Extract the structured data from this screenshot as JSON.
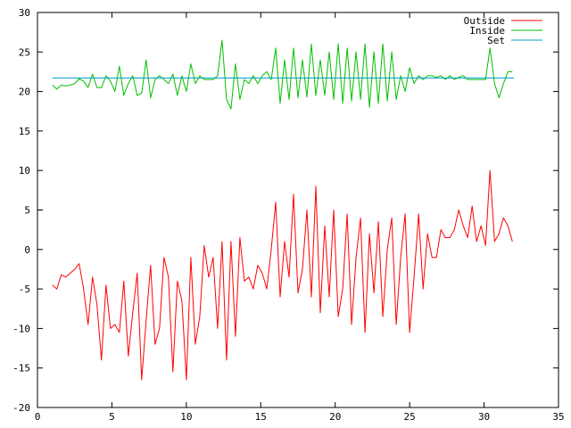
{
  "chart_data": {
    "type": "line",
    "title": "",
    "xlabel": "",
    "ylabel": "",
    "xlim": [
      0,
      35
    ],
    "ylim": [
      -20,
      30
    ],
    "x_ticks": [
      0,
      5,
      10,
      15,
      20,
      25,
      30,
      35
    ],
    "y_ticks": [
      -20,
      -15,
      -10,
      -5,
      0,
      5,
      10,
      15,
      20,
      25,
      30
    ],
    "grid": false,
    "legend_position": "top-right",
    "series": [
      {
        "name": "Outside",
        "color": "#ff0000",
        "x": [
          1.0,
          1.3,
          1.6,
          1.9,
          2.2,
          2.5,
          2.8,
          3.1,
          3.4,
          3.7,
          4.0,
          4.3,
          4.6,
          4.9,
          5.2,
          5.5,
          5.8,
          6.1,
          6.4,
          6.7,
          7.0,
          7.3,
          7.6,
          7.9,
          8.2,
          8.5,
          8.8,
          9.1,
          9.4,
          9.7,
          10.0,
          10.3,
          10.6,
          10.9,
          11.2,
          11.5,
          11.8,
          12.1,
          12.4,
          12.7,
          13.0,
          13.3,
          13.6,
          13.9,
          14.2,
          14.5,
          14.8,
          15.1,
          15.4,
          15.7,
          16.0,
          16.3,
          16.6,
          16.9,
          17.2,
          17.5,
          17.8,
          18.1,
          18.4,
          18.7,
          19.0,
          19.3,
          19.6,
          19.9,
          20.2,
          20.5,
          20.8,
          21.1,
          21.4,
          21.7,
          22.0,
          22.3,
          22.6,
          22.9,
          23.2,
          23.5,
          23.8,
          24.1,
          24.4,
          24.7,
          25.0,
          25.3,
          25.6,
          25.9,
          26.2,
          26.5,
          26.8,
          27.1,
          27.4,
          27.7,
          28.0,
          28.3,
          28.6,
          28.9,
          29.2,
          29.5,
          29.8,
          30.1,
          30.4,
          30.7,
          31.0,
          31.3,
          31.6,
          31.9
        ],
        "y": [
          -4.5,
          -5.0,
          -3.2,
          -3.5,
          -3.0,
          -2.5,
          -1.8,
          -5.0,
          -9.5,
          -3.5,
          -7.0,
          -14.0,
          -4.5,
          -10.0,
          -9.5,
          -10.5,
          -4.0,
          -13.5,
          -8.0,
          -3.0,
          -16.5,
          -9.0,
          -2.0,
          -12.0,
          -10.0,
          -1.0,
          -3.5,
          -15.5,
          -4.0,
          -6.5,
          -16.5,
          -1.0,
          -12.0,
          -8.5,
          0.5,
          -3.5,
          -1.0,
          -10.0,
          1.0,
          -14.0,
          1.0,
          -11.0,
          1.5,
          -4.0,
          -3.5,
          -5.0,
          -2.0,
          -3.0,
          -5.0,
          0.0,
          6.0,
          -6.0,
          1.0,
          -3.5,
          7.0,
          -5.5,
          -2.5,
          5.0,
          -6.0,
          8.0,
          -8.0,
          3.0,
          -6.0,
          5.0,
          -8.5,
          -5.0,
          4.5,
          -9.5,
          -1.0,
          4.0,
          -10.5,
          2.0,
          -5.5,
          3.5,
          -8.5,
          0.0,
          4.0,
          -9.5,
          -1.0,
          4.5,
          -10.5,
          -3.5,
          4.5,
          -5.0,
          2.0,
          -1.0,
          -1.0,
          2.5,
          1.5,
          1.5,
          2.5,
          5.0,
          3.0,
          1.5,
          5.5,
          1.0,
          3.0,
          0.5,
          10.0,
          1.0,
          2.0,
          4.0,
          3.0,
          1.0
        ]
      },
      {
        "name": "Inside",
        "color": "#00c000",
        "x": [
          1.0,
          1.3,
          1.6,
          1.9,
          2.2,
          2.5,
          2.8,
          3.1,
          3.4,
          3.7,
          4.0,
          4.3,
          4.6,
          4.9,
          5.2,
          5.5,
          5.8,
          6.1,
          6.4,
          6.7,
          7.0,
          7.3,
          7.6,
          7.9,
          8.2,
          8.5,
          8.8,
          9.1,
          9.4,
          9.7,
          10.0,
          10.3,
          10.6,
          10.9,
          11.2,
          11.5,
          11.8,
          12.1,
          12.4,
          12.7,
          13.0,
          13.3,
          13.6,
          13.9,
          14.2,
          14.5,
          14.8,
          15.1,
          15.4,
          15.7,
          16.0,
          16.3,
          16.6,
          16.9,
          17.2,
          17.5,
          17.8,
          18.1,
          18.4,
          18.7,
          19.0,
          19.3,
          19.6,
          19.9,
          20.2,
          20.5,
          20.8,
          21.1,
          21.4,
          21.7,
          22.0,
          22.3,
          22.6,
          22.9,
          23.2,
          23.5,
          23.8,
          24.1,
          24.4,
          24.7,
          25.0,
          25.3,
          25.6,
          25.9,
          26.2,
          26.5,
          26.8,
          27.1,
          27.4,
          27.7,
          28.0,
          28.3,
          28.6,
          28.9,
          29.2,
          29.5,
          29.8,
          30.1,
          30.4,
          30.7,
          31.0,
          31.3,
          31.6,
          31.9
        ],
        "y": [
          20.8,
          20.3,
          20.8,
          20.7,
          20.8,
          21.0,
          21.6,
          21.3,
          20.5,
          22.2,
          20.5,
          20.5,
          22.0,
          21.3,
          20.0,
          23.2,
          19.5,
          21.0,
          22.0,
          19.5,
          19.8,
          24.0,
          19.2,
          21.5,
          22.0,
          21.5,
          21.0,
          22.2,
          19.5,
          22.0,
          20.0,
          23.5,
          21.0,
          22.0,
          21.5,
          21.5,
          21.5,
          22.0,
          26.5,
          19.0,
          17.8,
          23.5,
          19.0,
          21.5,
          21.0,
          22.0,
          21.0,
          22.0,
          22.5,
          21.5,
          25.5,
          18.5,
          24.0,
          19.0,
          25.5,
          19.2,
          24.0,
          19.3,
          26.0,
          19.5,
          24.0,
          19.5,
          25.0,
          19.0,
          26.0,
          18.5,
          25.5,
          18.8,
          25.0,
          19.0,
          26.0,
          18.0,
          25.0,
          18.5,
          26.0,
          18.8,
          25.0,
          19.0,
          22.0,
          20.0,
          23.0,
          21.0,
          22.0,
          21.5,
          22.0,
          22.0,
          21.8,
          22.0,
          21.5,
          22.0,
          21.5,
          21.8,
          22.0,
          21.5,
          21.5,
          21.5,
          21.5,
          21.5,
          25.5,
          21.0,
          19.2,
          21.0,
          22.5,
          22.5
        ]
      },
      {
        "name": "Set",
        "color": "#00a0c0",
        "x": [
          1.0,
          32.0
        ],
        "y": [
          21.7,
          21.7
        ]
      }
    ]
  }
}
